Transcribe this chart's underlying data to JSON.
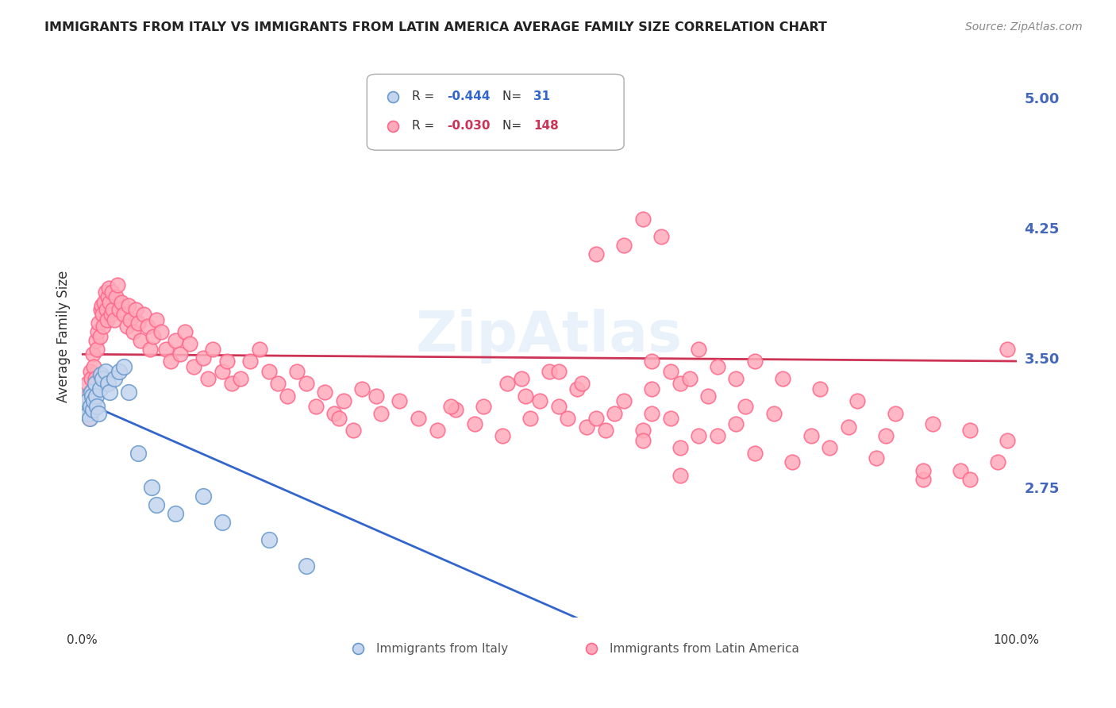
{
  "title": "IMMIGRANTS FROM ITALY VS IMMIGRANTS FROM LATIN AMERICA AVERAGE FAMILY SIZE CORRELATION CHART",
  "source": "Source: ZipAtlas.com",
  "ylabel": "Average Family Size",
  "yticks": [
    2.75,
    3.5,
    4.25,
    5.0
  ],
  "xlim": [
    0.0,
    1.0
  ],
  "ylim": [
    2.0,
    5.25
  ],
  "italy_color": "#6699cc",
  "italy_fill": "#c5d5ee",
  "latin_color": "#ff6688",
  "latin_fill": "#ffaabb",
  "legend_italy_r": "-0.444",
  "legend_italy_n": "31",
  "legend_latin_r": "-0.030",
  "legend_latin_n": "148",
  "italy_trend_x": [
    0.0,
    0.55
  ],
  "italy_trend_y": [
    3.25,
    1.95
  ],
  "latin_trend_x": [
    0.0,
    1.0
  ],
  "latin_trend_y": [
    3.52,
    3.48
  ],
  "italy_scatter_x": [
    0.005,
    0.006,
    0.007,
    0.008,
    0.009,
    0.01,
    0.011,
    0.012,
    0.013,
    0.014,
    0.015,
    0.016,
    0.018,
    0.019,
    0.02,
    0.022,
    0.025,
    0.028,
    0.03,
    0.035,
    0.04,
    0.045,
    0.05,
    0.06,
    0.075,
    0.08,
    0.1,
    0.13,
    0.15,
    0.2,
    0.24
  ],
  "italy_scatter_y": [
    3.2,
    3.25,
    3.18,
    3.15,
    3.22,
    3.3,
    3.28,
    3.2,
    3.25,
    3.35,
    3.28,
    3.22,
    3.18,
    3.32,
    3.4,
    3.38,
    3.42,
    3.35,
    3.3,
    3.38,
    3.42,
    3.45,
    3.3,
    2.95,
    2.75,
    2.65,
    2.6,
    2.7,
    2.55,
    2.45,
    2.3
  ],
  "latin_scatter_x": [
    0.003,
    0.005,
    0.006,
    0.007,
    0.008,
    0.009,
    0.01,
    0.011,
    0.012,
    0.013,
    0.014,
    0.015,
    0.016,
    0.017,
    0.018,
    0.019,
    0.02,
    0.021,
    0.022,
    0.023,
    0.024,
    0.025,
    0.026,
    0.027,
    0.028,
    0.029,
    0.03,
    0.031,
    0.032,
    0.033,
    0.035,
    0.036,
    0.038,
    0.04,
    0.042,
    0.045,
    0.048,
    0.05,
    0.052,
    0.055,
    0.058,
    0.06,
    0.063,
    0.066,
    0.07,
    0.073,
    0.076,
    0.08,
    0.085,
    0.09,
    0.095,
    0.1,
    0.105,
    0.11,
    0.115,
    0.12,
    0.13,
    0.135,
    0.14,
    0.15,
    0.155,
    0.16,
    0.17,
    0.18,
    0.19,
    0.2,
    0.21,
    0.22,
    0.23,
    0.24,
    0.25,
    0.26,
    0.27,
    0.28,
    0.3,
    0.32,
    0.34,
    0.36,
    0.38,
    0.4,
    0.42,
    0.45,
    0.48,
    0.51,
    0.54,
    0.57,
    0.6,
    0.63,
    0.66,
    0.7,
    0.74,
    0.78,
    0.82,
    0.86,
    0.9,
    0.94,
    0.98,
    0.55,
    0.58,
    0.61,
    0.64,
    0.67,
    0.71,
    0.75,
    0.79,
    0.83,
    0.87,
    0.91,
    0.95,
    0.99,
    0.52,
    0.56,
    0.6,
    0.64,
    0.68,
    0.72,
    0.76,
    0.8,
    0.85,
    0.9,
    0.95,
    0.6,
    0.62,
    0.55,
    0.58,
    0.64,
    0.66,
    0.68,
    0.7,
    0.72,
    0.99,
    0.61,
    0.63,
    0.65,
    0.61,
    0.43,
    0.47,
    0.53,
    0.5,
    0.475,
    0.455,
    0.49,
    0.51,
    0.535,
    0.395,
    0.29,
    0.275,
    0.315
  ],
  "latin_scatter_y": [
    3.18,
    3.22,
    3.35,
    3.28,
    3.15,
    3.42,
    3.38,
    3.3,
    3.52,
    3.45,
    3.38,
    3.6,
    3.55,
    3.65,
    3.7,
    3.62,
    3.78,
    3.8,
    3.75,
    3.68,
    3.82,
    3.88,
    3.78,
    3.72,
    3.85,
    3.9,
    3.82,
    3.75,
    3.88,
    3.78,
    3.72,
    3.85,
    3.92,
    3.78,
    3.82,
    3.75,
    3.68,
    3.8,
    3.72,
    3.65,
    3.78,
    3.7,
    3.6,
    3.75,
    3.68,
    3.55,
    3.62,
    3.72,
    3.65,
    3.55,
    3.48,
    3.6,
    3.52,
    3.65,
    3.58,
    3.45,
    3.5,
    3.38,
    3.55,
    3.42,
    3.48,
    3.35,
    3.38,
    3.48,
    3.55,
    3.42,
    3.35,
    3.28,
    3.42,
    3.35,
    3.22,
    3.3,
    3.18,
    3.25,
    3.32,
    3.18,
    3.25,
    3.15,
    3.08,
    3.2,
    3.12,
    3.05,
    3.15,
    3.22,
    3.1,
    3.18,
    3.08,
    3.15,
    3.05,
    3.12,
    3.18,
    3.05,
    3.1,
    3.05,
    2.8,
    2.85,
    2.9,
    3.15,
    3.25,
    3.18,
    3.35,
    3.28,
    3.22,
    3.38,
    3.32,
    3.25,
    3.18,
    3.12,
    3.08,
    3.02,
    3.15,
    3.08,
    3.02,
    2.98,
    3.05,
    2.95,
    2.9,
    2.98,
    2.92,
    2.85,
    2.8,
    4.3,
    4.2,
    4.1,
    4.15,
    2.82,
    3.55,
    3.45,
    3.38,
    3.48,
    3.55,
    3.32,
    3.42,
    3.38,
    3.48,
    3.22,
    3.38,
    3.32,
    3.42,
    3.28,
    3.35,
    3.25,
    3.42,
    3.35,
    3.22,
    3.08,
    3.15,
    3.28
  ]
}
